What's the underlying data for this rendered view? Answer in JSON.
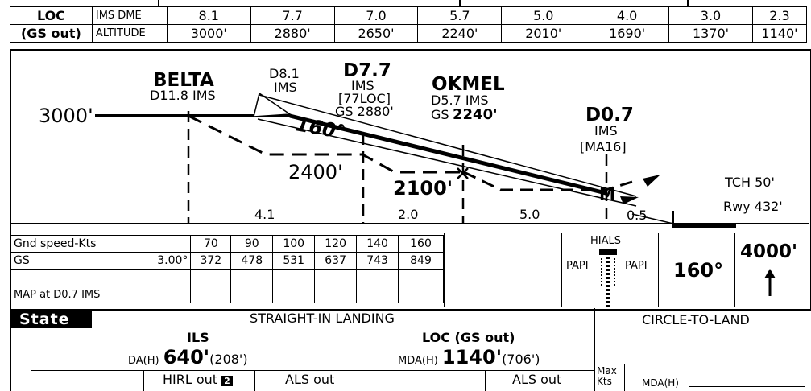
{
  "dme_table": {
    "mode_label_line1": "LOC",
    "mode_label_line2": "(GS out)",
    "row1_label": "IMS DME",
    "row2_label": "ALTITUDE",
    "distances": [
      "8.1",
      "7.7",
      "7.0",
      "5.7",
      "5.0",
      "4.0",
      "3.0",
      "2.3"
    ],
    "altitudes": [
      "3000'",
      "2880'",
      "2650'",
      "2240'",
      "2010'",
      "1690'",
      "1370'",
      "1140'"
    ]
  },
  "profile": {
    "initial_altitude": "3000'",
    "belta_name": "BELTA",
    "belta_dme": "D11.8 IMS",
    "d81_line1": "D8.1",
    "d81_line2": "IMS",
    "d77_name": "D7.7",
    "d77_line2": "IMS",
    "d77_line3": "[77LOC]",
    "d77_gs": "GS 2880'",
    "course": "160°",
    "okmel_name": "OKMEL",
    "okmel_dme": "D5.7 IMS",
    "okmel_gs_prefix": "GS",
    "okmel_gs_value": "2240'",
    "d07_name": "D0.7",
    "d07_line2": "IMS",
    "d07_line3": "[MA16]",
    "alt_2400": "2400'",
    "alt_2100": "2100'",
    "m_marker": "M",
    "tch": "TCH 50'",
    "rwy": "Rwy 432'",
    "seg_dist_1": "4.1",
    "seg_dist_2": "2.0",
    "seg_dist_3": "5.0",
    "seg_dist_4": "0.5"
  },
  "gs_table": {
    "gnd_speed_label": "Gnd speed-Kts",
    "gs_label": "GS",
    "gs_angle": "3.00°",
    "speeds": [
      "70",
      "90",
      "100",
      "120",
      "140",
      "160"
    ],
    "rates": [
      "372",
      "478",
      "531",
      "637",
      "743",
      "849"
    ],
    "map_label": "MAP at D0.7 IMS"
  },
  "lights": {
    "hials": "HIALS",
    "papi_left": "PAPI",
    "papi_right": "PAPI",
    "course": "160°",
    "missed_alt": "4000'"
  },
  "minimums": {
    "state_label": "State",
    "straight_in": "STRAIGHT-IN LANDING",
    "circle": "CIRCLE-TO-LAND",
    "ils_title": "ILS",
    "ils_da_label": "DA(H)",
    "ils_da_value": "640'",
    "ils_da_height": "(208')",
    "loc_title": "LOC (GS out)",
    "loc_mda_label": "MDA(H)",
    "loc_mda_value": "1140'",
    "loc_mda_height": "(706')",
    "hirl_out": "HIRL out",
    "hirl_badge": "2",
    "als_out_1": "ALS out",
    "als_out_2": "ALS out",
    "max_kts": "Max Kts",
    "circle_mda": "MDA(H)"
  }
}
